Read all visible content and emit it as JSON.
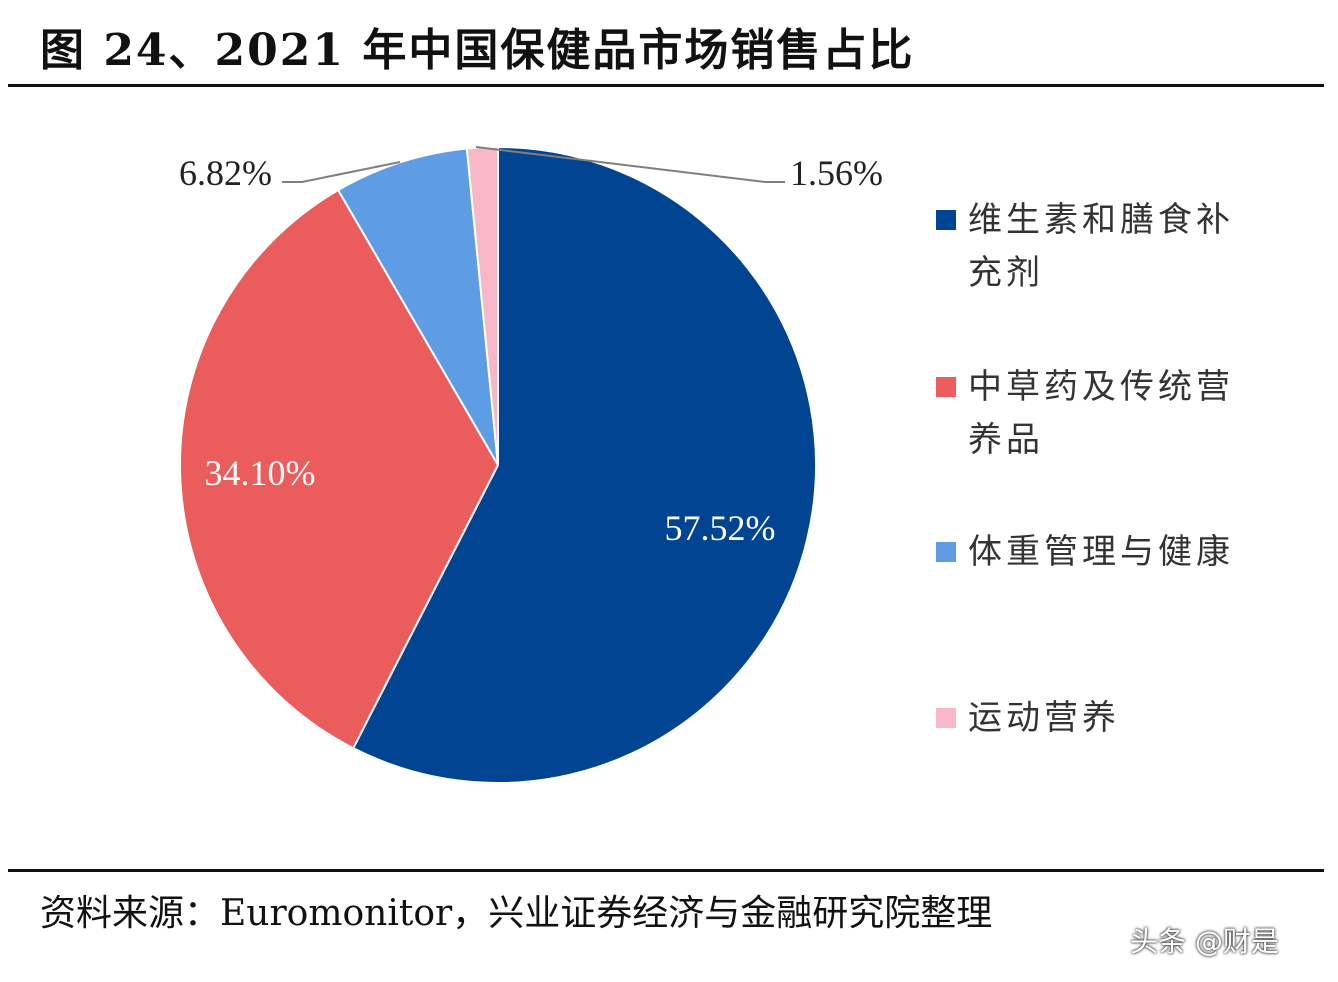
{
  "title": "图 24、2021 年中国保健品市场销售占比",
  "source": "资料来源：Euromonitor，兴业证券经济与金融研究院整理",
  "watermark": "头条 @财是",
  "chart_data": {
    "type": "pie",
    "start": "12 o'clock, clockwise",
    "categories": [
      "维生素和膳食补充剂",
      "中草药及传统营养品",
      "体重管理与健康",
      "运动营养"
    ],
    "values": [
      57.52,
      34.1,
      6.82,
      1.56
    ],
    "labels": [
      "57.52%",
      "34.10%",
      "6.82%",
      "1.56%"
    ],
    "colors": [
      "#014592",
      "#EB5C5C",
      "#5E9DE3",
      "#F8B7C6"
    ],
    "legend_position": "right"
  }
}
